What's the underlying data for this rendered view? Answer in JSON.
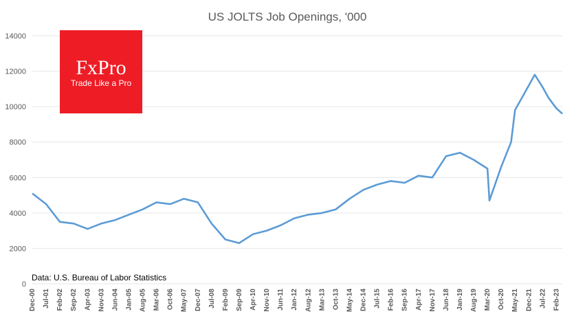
{
  "colors": {
    "line": "#5b9bd5",
    "logo_bg": "#ee1c25",
    "text": "#595959",
    "grid": "#e6e6e6"
  },
  "logo": {
    "name": "FxPro",
    "tagline": "Trade Like a Pro"
  },
  "source_note": "Data: U.S. Bureau of Labor Statistics",
  "chart_data": {
    "type": "line",
    "title": "US JOLTS Job Openings, '000",
    "xlabel": "",
    "ylabel": "",
    "ylim": [
      0,
      14000
    ],
    "yticks": [
      "0",
      "2000",
      "4000",
      "6000",
      "8000",
      "10000",
      "12000",
      "14000"
    ],
    "grid": "horizontal",
    "xticks": [
      "Dec-00",
      "Jul-01",
      "Feb-02",
      "Sep-02",
      "Apr-03",
      "Nov-03",
      "Jun-04",
      "Jan-05",
      "Aug-05",
      "Mar-06",
      "Oct-06",
      "May-07",
      "Dec-07",
      "Jul-08",
      "Feb-09",
      "Sep-09",
      "Apr-10",
      "Nov-10",
      "Jun-11",
      "Jan-12",
      "Aug-12",
      "Mar-13",
      "Oct-13",
      "May-14",
      "Dec-14",
      "Jul-15",
      "Feb-16",
      "Sep-16",
      "Apr-17",
      "Nov-17",
      "Jun-18",
      "Jan-19",
      "Aug-19",
      "Mar-20",
      "Oct-20",
      "May-21",
      "Dec-21",
      "Jul-22",
      "Feb-23"
    ],
    "series": [
      {
        "x": [
          "Dec-00",
          "Jul-01",
          "Feb-02",
          "Sep-02",
          "Apr-03",
          "Nov-03",
          "Jun-04",
          "Jan-05",
          "Aug-05",
          "Mar-06",
          "Oct-06",
          "May-07",
          "Dec-07",
          "Jul-08",
          "Feb-09",
          "Sep-09",
          "Apr-10",
          "Nov-10",
          "Jun-11",
          "Jan-12",
          "Aug-12",
          "Mar-13",
          "Oct-13",
          "May-14",
          "Dec-14",
          "Jul-15",
          "Feb-16",
          "Sep-16",
          "Apr-17",
          "Nov-17",
          "Jun-18",
          "Jan-19",
          "Aug-19",
          "Mar-20",
          "Apr-20",
          "Oct-20",
          "Mar-21",
          "May-21",
          "Dec-21",
          "Mar-22",
          "Jul-22",
          "Oct-22",
          "Feb-23",
          "May-23"
        ],
        "values": [
          5100,
          4500,
          3500,
          3400,
          3100,
          3400,
          3600,
          3900,
          4200,
          4600,
          4500,
          4800,
          4600,
          3400,
          2500,
          2300,
          2800,
          3000,
          3300,
          3700,
          3900,
          4000,
          4200,
          4800,
          5300,
          5600,
          5800,
          5700,
          6100,
          6000,
          7200,
          7400,
          7000,
          6500,
          4700,
          6600,
          8000,
          9800,
          11200,
          11800,
          11100,
          10500,
          9900,
          9600
        ]
      }
    ]
  }
}
